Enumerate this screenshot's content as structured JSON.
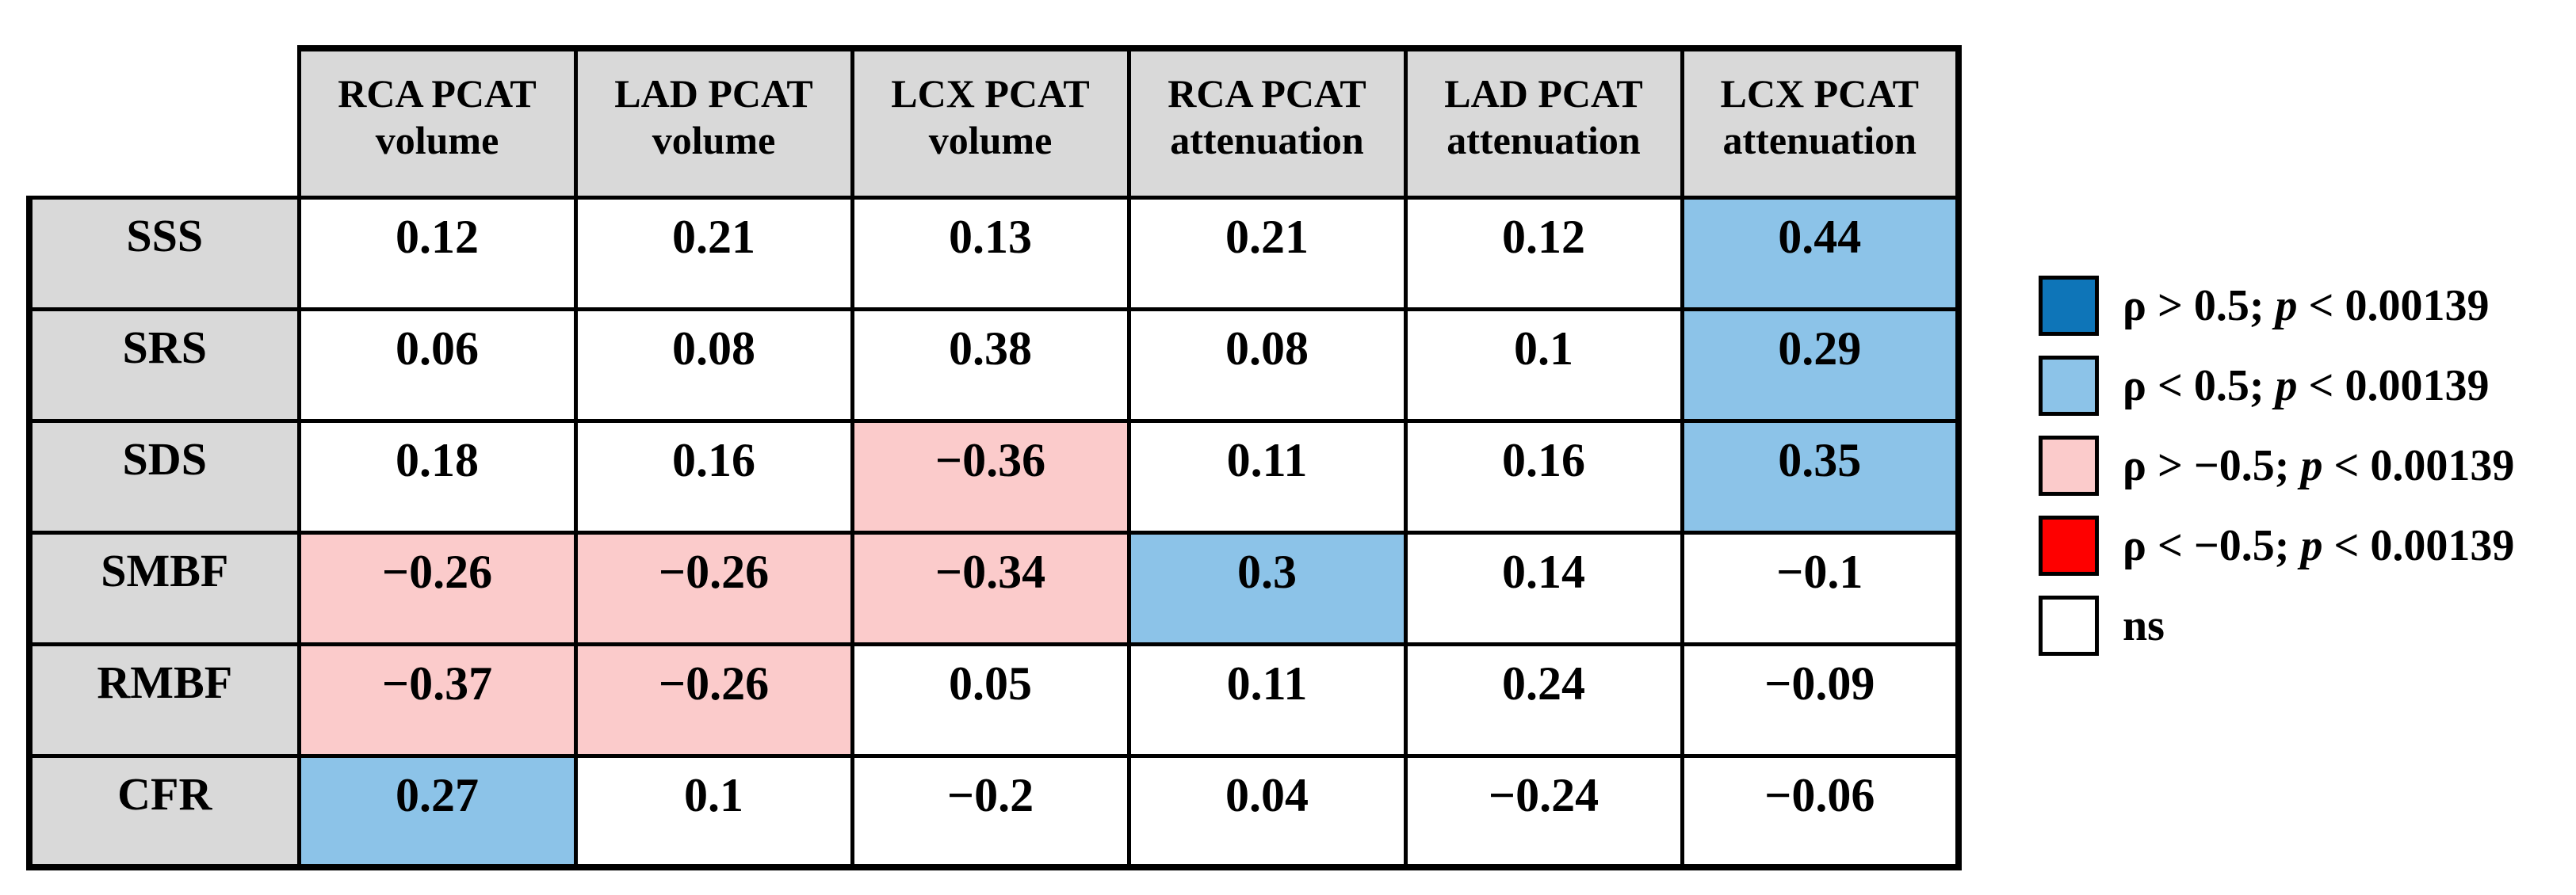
{
  "colors": {
    "header_bg": "#d9d9d9",
    "border": "#000000",
    "pos_strong": "#0e75b8",
    "pos_weak": "#8cc3e8",
    "neg_weak": "#fbcbcb",
    "neg_strong": "#fe0000",
    "ns": "#ffffff"
  },
  "chart_data": {
    "type": "heatmap",
    "title": "",
    "legend_position": "right",
    "grid": true,
    "columns": [
      {
        "full": "RCA PCAT volume",
        "line1": "RCA PCAT",
        "line2": "volume"
      },
      {
        "full": "LAD PCAT volume",
        "line1": "LAD PCAT",
        "line2": "volume"
      },
      {
        "full": "LCX PCAT volume",
        "line1": "LCX PCAT",
        "line2": "volume"
      },
      {
        "full": "RCA PCAT attenuation",
        "line1": "RCA PCAT",
        "line2": "attenuation"
      },
      {
        "full": "LAD PCAT attenuation",
        "line1": "LAD PCAT",
        "line2": "attenuation"
      },
      {
        "full": "LCX PCAT attenuation",
        "line1": "LCX PCAT",
        "line2": "attenuation"
      }
    ],
    "rows": [
      "SSS",
      "SRS",
      "SDS",
      "SMBF",
      "RMBF",
      "CFR"
    ],
    "values": [
      [
        0.12,
        0.21,
        0.13,
        0.21,
        0.12,
        0.44
      ],
      [
        0.06,
        0.08,
        0.38,
        0.08,
        0.1,
        0.29
      ],
      [
        0.18,
        0.16,
        -0.36,
        0.11,
        0.16,
        0.35
      ],
      [
        -0.26,
        -0.26,
        -0.34,
        0.3,
        0.14,
        -0.1
      ],
      [
        -0.37,
        -0.26,
        0.05,
        0.11,
        0.24,
        -0.09
      ],
      [
        0.27,
        0.1,
        -0.2,
        0.04,
        -0.24,
        -0.06
      ]
    ],
    "cell_labels": [
      [
        "0.12",
        "0.21",
        "0.13",
        "0.21",
        "0.12",
        "0.44"
      ],
      [
        "0.06",
        "0.08",
        "0.38",
        "0.08",
        "0.1",
        "0.29"
      ],
      [
        "0.18",
        "0.16",
        "−0.36",
        "0.11",
        "0.16",
        "0.35"
      ],
      [
        "−0.26",
        "−0.26",
        "−0.34",
        "0.3",
        "0.14",
        "−0.1"
      ],
      [
        "−0.37",
        "−0.26",
        "0.05",
        "0.11",
        "0.24",
        "−0.09"
      ],
      [
        "0.27",
        "0.1",
        "−0.2",
        "0.04",
        "−0.24",
        "−0.06"
      ]
    ],
    "significance": [
      [
        "ns",
        "ns",
        "ns",
        "ns",
        "ns",
        "pos_weak"
      ],
      [
        "ns",
        "ns",
        "ns",
        "ns",
        "ns",
        "pos_weak"
      ],
      [
        "ns",
        "ns",
        "neg_weak",
        "ns",
        "ns",
        "pos_weak"
      ],
      [
        "neg_weak",
        "neg_weak",
        "neg_weak",
        "pos_weak",
        "ns",
        "ns"
      ],
      [
        "neg_weak",
        "neg_weak",
        "ns",
        "ns",
        "ns",
        "ns"
      ],
      [
        "pos_weak",
        "ns",
        "ns",
        "ns",
        "ns",
        "ns"
      ]
    ]
  },
  "legend": {
    "items": [
      {
        "key": "pos_strong",
        "label": "ρ > 0.5; p < 0.00139",
        "pre": "ρ > 0.5; ",
        "pvar": "p",
        "post": " < 0.00139"
      },
      {
        "key": "pos_weak",
        "label": "ρ < 0.5; p < 0.00139",
        "pre": "ρ < 0.5; ",
        "pvar": "p",
        "post": " < 0.00139"
      },
      {
        "key": "neg_weak",
        "label": "ρ > −0.5; p < 0.00139",
        "pre": "ρ > −0.5; ",
        "pvar": "p",
        "post": " < 0.00139"
      },
      {
        "key": "neg_strong",
        "label": "ρ < −0.5; p < 0.00139",
        "pre": "ρ < −0.5; ",
        "pvar": "p",
        "post": " < 0.00139"
      },
      {
        "key": "ns",
        "label": "ns",
        "pre": "ns",
        "pvar": "",
        "post": ""
      }
    ]
  }
}
